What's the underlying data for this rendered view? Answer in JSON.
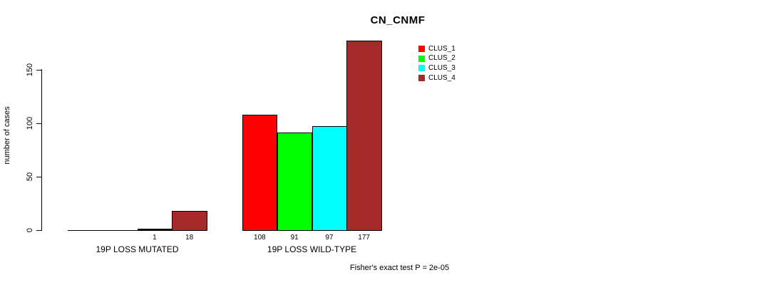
{
  "chart_data": {
    "type": "bar",
    "title": "CN_CNMF",
    "ylabel": "number of cases",
    "xlabel": "",
    "yticks": [
      0,
      50,
      100,
      150
    ],
    "ylim": [
      0,
      178
    ],
    "grid": false,
    "legend_position": "top-right",
    "background_color": "#FFFFFF",
    "bar_border_color": "#000000",
    "series": [
      {
        "name": "CLUS_1",
        "color": "#FF0000"
      },
      {
        "name": "CLUS_2",
        "color": "#00FF00"
      },
      {
        "name": "CLUS_3",
        "color": "#00FFFF"
      },
      {
        "name": "CLUS_4",
        "color": "#A52A2A"
      }
    ],
    "groups": [
      {
        "label": "19P LOSS MUTATED",
        "values": [
          0,
          0,
          1,
          18
        ],
        "bar_labels": [
          "",
          "",
          "1",
          "18"
        ]
      },
      {
        "label": "19P LOSS WILD-TYPE",
        "values": [
          108,
          91,
          97,
          177
        ],
        "bar_labels": [
          "108",
          "91",
          "97",
          "177"
        ]
      }
    ],
    "annotation": "Fisher's exact test P = 2e-05"
  }
}
